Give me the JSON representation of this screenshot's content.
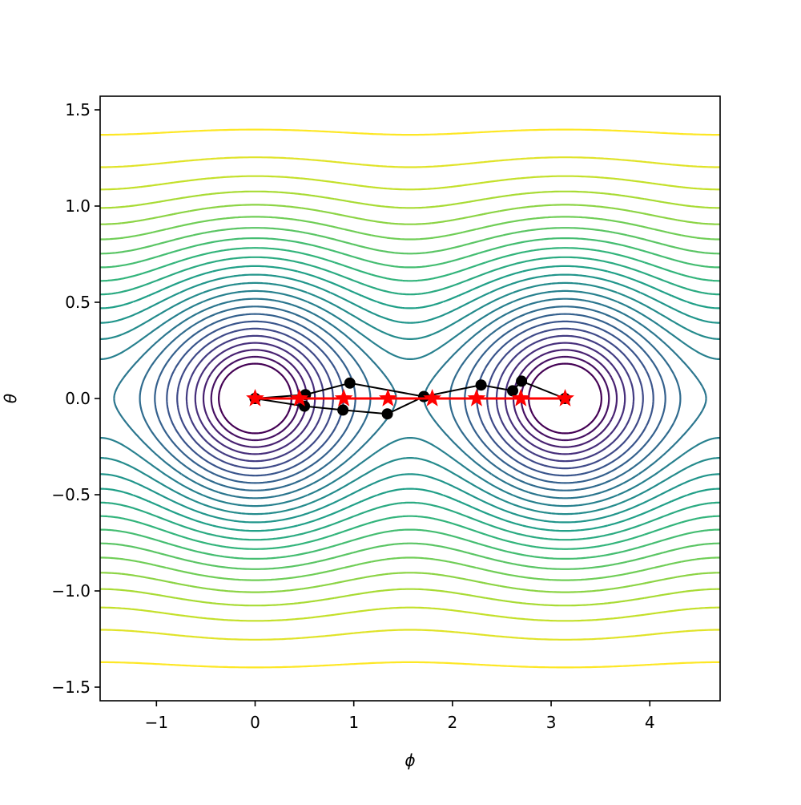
{
  "chart_data": {
    "type": "contour",
    "xlabel": "ϕ",
    "ylabel": "θ",
    "xlim": [
      -1.5708,
      4.7124
    ],
    "ylim": [
      -1.5708,
      1.5708
    ],
    "xticks": [
      {
        "value": -1,
        "label": "−1"
      },
      0,
      1,
      2,
      3,
      4
    ],
    "yticks": [
      {
        "value": -1.5,
        "label": "−1.5"
      },
      {
        "value": -1.0,
        "label": "−1.0"
      },
      {
        "value": -0.5,
        "label": "−0.5"
      },
      {
        "value": 0.0,
        "label": "0.0"
      },
      {
        "value": 0.5,
        "label": "0.5"
      },
      {
        "value": 1.0,
        "label": "1.0"
      },
      {
        "value": 1.5,
        "label": "1.5"
      }
    ],
    "colormap": "viridis",
    "levels": [
      0.18,
      0.215,
      0.25,
      0.285,
      0.32,
      0.355,
      0.39,
      0.425,
      0.46,
      0.495,
      0.53,
      0.565,
      0.6,
      0.635,
      0.67,
      0.705,
      0.74,
      0.775,
      0.81,
      0.845,
      0.88,
      0.915,
      0.95,
      0.985
    ],
    "series": [
      {
        "color": "#000000",
        "marker": "circle",
        "x": [
          0,
          0.51,
          0.96,
          1.71
        ],
        "y": [
          0,
          0.02,
          0.08,
          0.01
        ]
      },
      {
        "color": "#000000",
        "marker": "circle",
        "x": [
          0,
          0.5,
          0.89,
          1.34,
          1.71,
          2.29,
          2.61,
          2.7,
          3.14
        ],
        "y": [
          0,
          -0.04,
          -0.06,
          -0.08,
          0.01,
          0.07,
          0.04,
          0.09,
          0
        ]
      },
      {
        "color": "#ff0000",
        "marker": "star",
        "x": [
          0,
          0.449,
          0.898,
          1.346,
          1.795,
          2.244,
          2.693,
          3.142
        ],
        "y": [
          0,
          0,
          0,
          0,
          0,
          0,
          0,
          0
        ]
      }
    ]
  }
}
